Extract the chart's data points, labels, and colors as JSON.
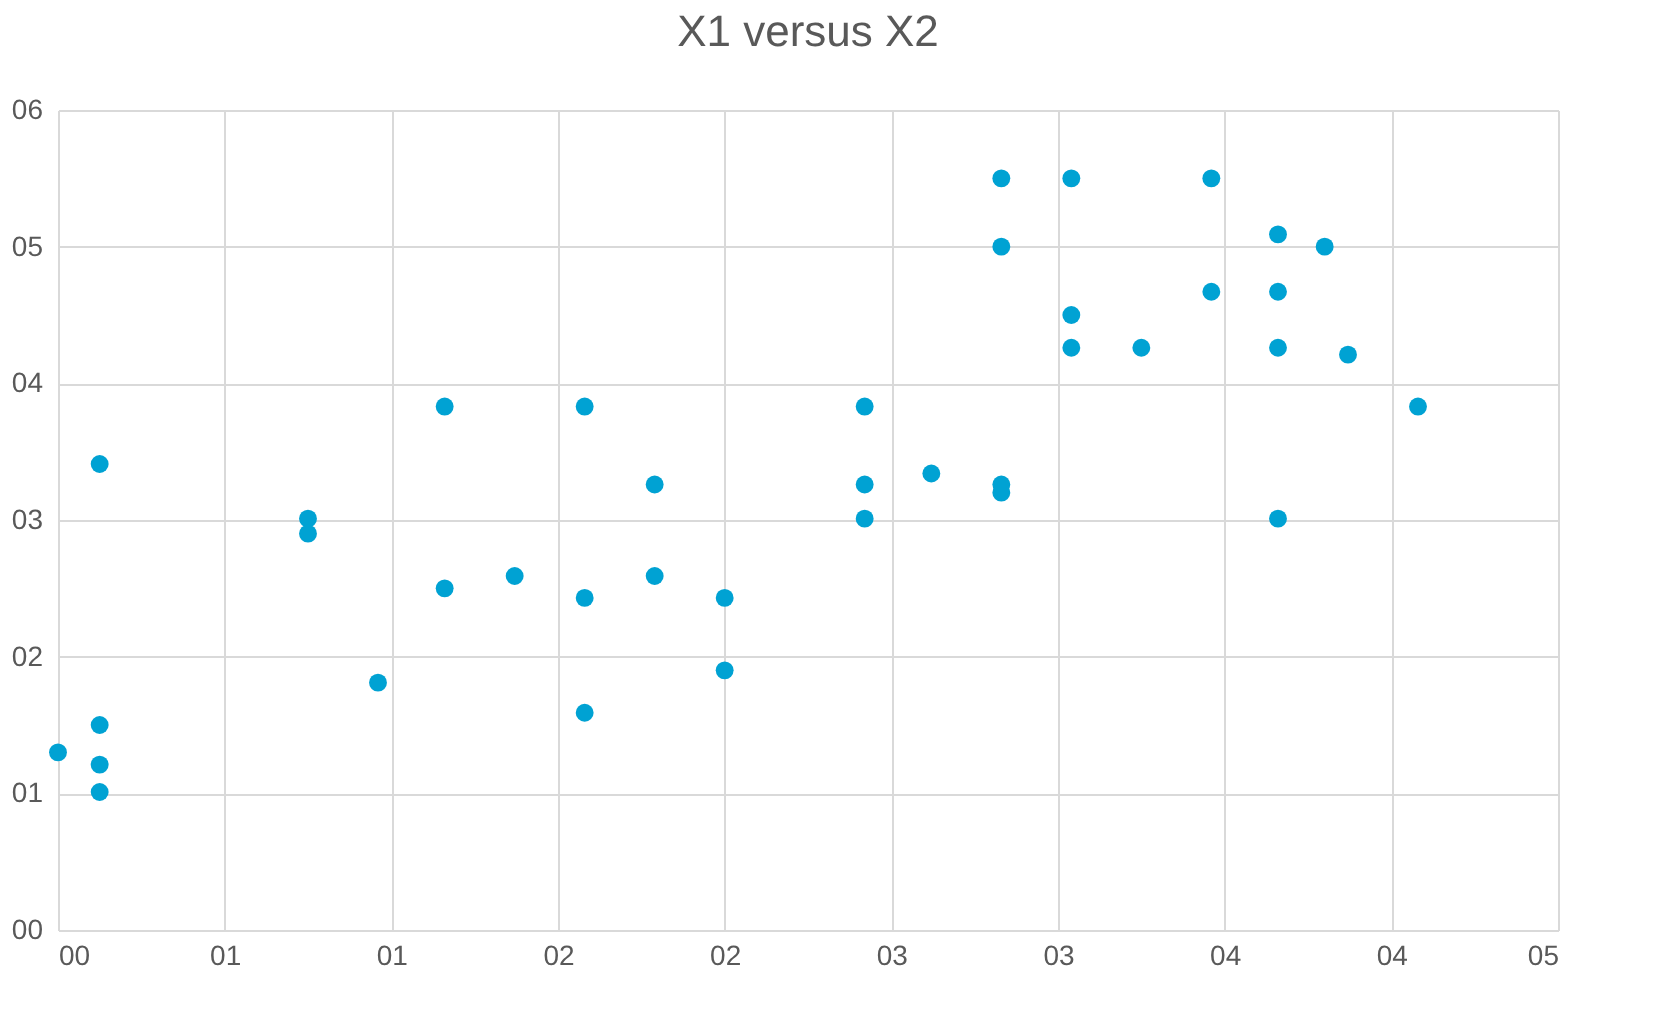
{
  "chart_data": {
    "type": "scatter",
    "title": "X1 versus   X2",
    "x": [
      0,
      0.125,
      0.125,
      0.125,
      0.125,
      0.75,
      0.75,
      0.96,
      1.16,
      1.16,
      1.37,
      1.58,
      1.58,
      1.58,
      1.79,
      1.79,
      2.0,
      2.0,
      2.42,
      2.42,
      2.42,
      2.62,
      2.83,
      2.83,
      2.83,
      2.83,
      3.04,
      3.04,
      3.04,
      3.25,
      3.46,
      3.46,
      3.66,
      3.66,
      3.66,
      3.66,
      3.8,
      3.87,
      4.08
    ],
    "series": [
      {
        "color": "#00a2d3",
        "values": [
          1.3,
          3.41,
          1.5,
          1.21,
          1.01,
          3.01,
          2.9,
          1.81,
          3.83,
          2.5,
          2.59,
          3.83,
          2.43,
          1.59,
          3.26,
          2.59,
          2.43,
          1.9,
          3.83,
          3.26,
          3.01,
          3.34,
          5.5,
          5.0,
          3.26,
          3.2,
          5.5,
          4.5,
          4.26,
          4.26,
          5.5,
          4.67,
          5.09,
          4.67,
          4.26,
          3.01,
          5.0,
          4.21,
          3.83
        ]
      }
    ],
    "xlim": [
      0,
      4.5
    ],
    "ylim": [
      0,
      6
    ],
    "xticks": [
      {
        "value": 0,
        "label": "00"
      },
      {
        "value": 0.5,
        "label": "01"
      },
      {
        "value": 1,
        "label": "01"
      },
      {
        "value": 1.5,
        "label": "02"
      },
      {
        "value": 2,
        "label": "02"
      },
      {
        "value": 2.5,
        "label": "03"
      },
      {
        "value": 3,
        "label": "03"
      },
      {
        "value": 3.5,
        "label": "04"
      },
      {
        "value": 4,
        "label": "04"
      },
      {
        "value": 4.5,
        "label": "05"
      }
    ],
    "yticks": [
      {
        "value": 0,
        "label": "00"
      },
      {
        "value": 1,
        "label": "01"
      },
      {
        "value": 2,
        "label": "02"
      },
      {
        "value": 3,
        "label": "03"
      },
      {
        "value": 4,
        "label": "04"
      },
      {
        "value": 5,
        "label": "05"
      },
      {
        "value": 6,
        "label": "06"
      }
    ],
    "grid": true,
    "marker": "circle",
    "legend": false
  }
}
